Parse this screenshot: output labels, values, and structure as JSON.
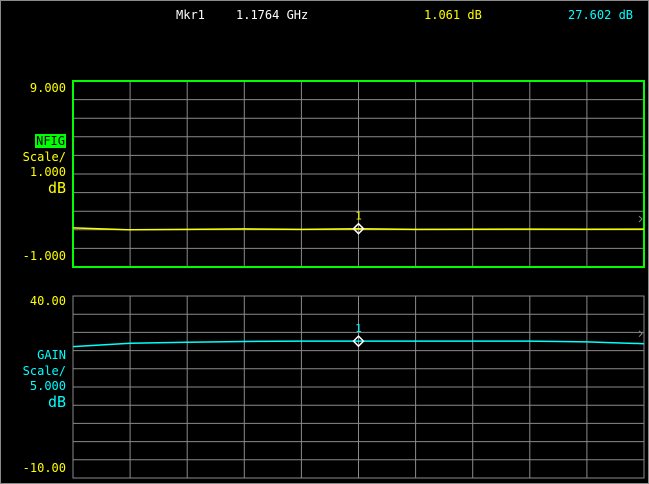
{
  "header": {
    "marker_label": "Mkr1",
    "frequency": "1.1764 GHz",
    "nfig_value": "1.061 dB",
    "gain_value": "27.602 dB"
  },
  "colors": {
    "nfig": "#ffff00",
    "gain": "#00ffff",
    "active_border": "#00ff00",
    "grid": "#8a8a8a",
    "white": "#ffffff"
  },
  "nfig_panel": {
    "top_ref": "9.000",
    "bottom_ref": "-1.000",
    "trace_name": "NFIG",
    "scale_label": "Scale/",
    "scale_value": "1.000",
    "unit": "dB",
    "marker_number": "1"
  },
  "gain_panel": {
    "top_ref": "40.00",
    "bottom_ref": "-10.00",
    "trace_name": "GAIN",
    "scale_label": "Scale/",
    "scale_value": "5.000",
    "unit": "dB",
    "marker_number": "1"
  },
  "chart_data": [
    {
      "type": "line",
      "title": "",
      "ylabel": "",
      "ylim": [
        -1,
        9
      ],
      "grid": true,
      "series": [
        {
          "name": "NFIG",
          "x": [
            0.0,
            0.1,
            0.2,
            0.3,
            0.4,
            0.5,
            0.6,
            0.7,
            0.8,
            0.9,
            1.0
          ],
          "values": [
            1.1,
            1.0,
            1.02,
            1.05,
            1.02,
            1.06,
            1.02,
            1.03,
            1.04,
            1.03,
            1.04
          ]
        }
      ]
    },
    {
      "type": "line",
      "title": "",
      "ylabel": "",
      "ylim": [
        -10,
        40
      ],
      "grid": true,
      "series": [
        {
          "name": "GAIN",
          "x": [
            0.0,
            0.1,
            0.2,
            0.3,
            0.4,
            0.5,
            0.6,
            0.7,
            0.8,
            0.9,
            1.0
          ],
          "values": [
            26.1,
            27.0,
            27.3,
            27.5,
            27.6,
            27.6,
            27.6,
            27.6,
            27.6,
            27.4,
            26.9
          ]
        }
      ]
    }
  ]
}
